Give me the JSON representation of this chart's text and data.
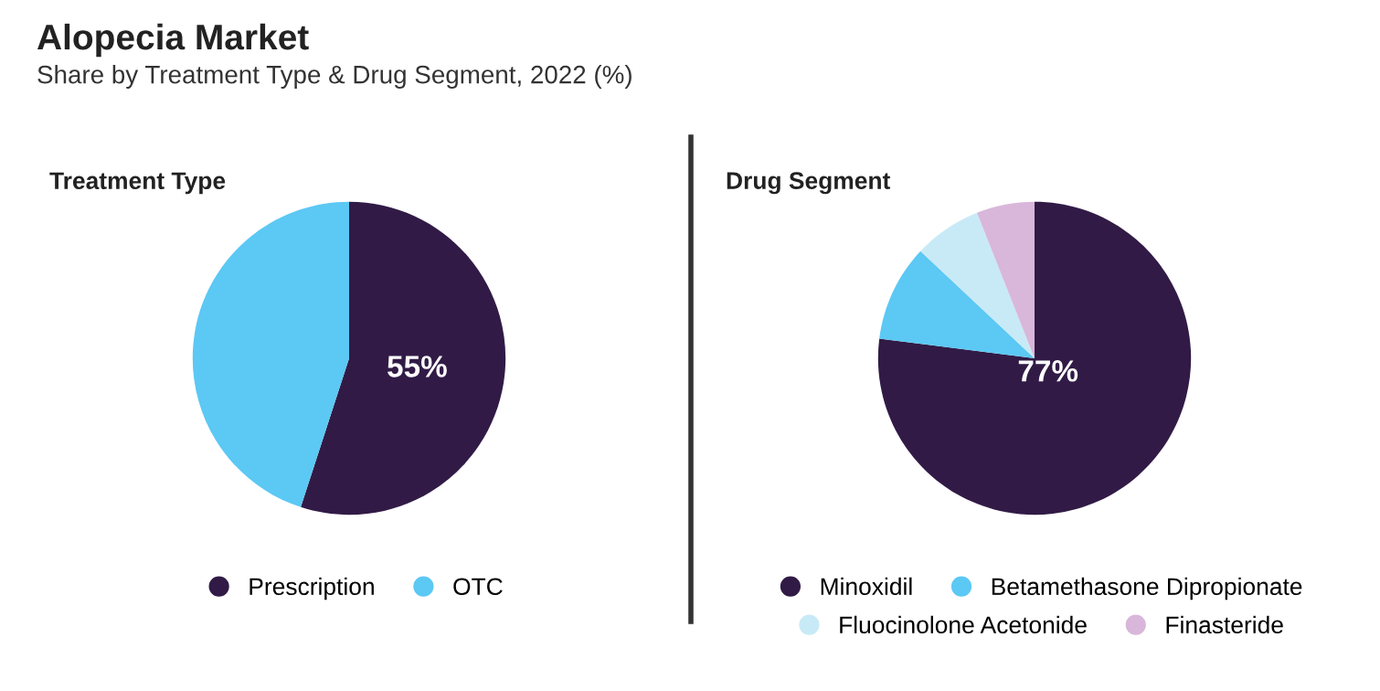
{
  "chart_data": [
    {
      "type": "pie",
      "title": "Treatment Type",
      "annotations": [
        "Alopecia Market",
        "Share by Treatment Type & Drug Segment, 2022 (%)"
      ],
      "categories": [
        "Prescription",
        "OTC"
      ],
      "values": [
        55,
        45
      ],
      "colors": [
        "#311b46",
        "#5cc8f4"
      ],
      "value_labels": [
        "55%",
        null
      ],
      "legend": "bottom"
    },
    {
      "type": "pie",
      "title": "Drug Segment",
      "categories": [
        "Minoxidil",
        "Betamethasone Dipropionate",
        "Fluocinolone Acetonide",
        "Finasteride"
      ],
      "values": [
        77,
        10,
        7,
        6
      ],
      "colors": [
        "#311b46",
        "#5cc8f4",
        "#c8eaf6",
        "#d8b7da"
      ],
      "value_labels": [
        "77%",
        null,
        null,
        null
      ],
      "legend": "bottom"
    }
  ]
}
